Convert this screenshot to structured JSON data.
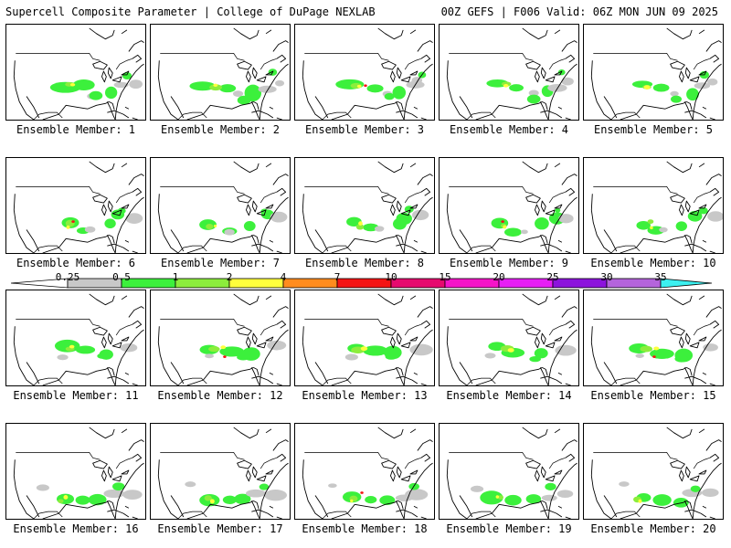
{
  "header": {
    "title_left": "Supercell Composite Parameter | College of DuPage NEXLAB",
    "title_right": "00Z GEFS | F006 Valid: 06Z MON JUN 09 2025"
  },
  "members": [
    {
      "label": "Ensemble Member: 1"
    },
    {
      "label": "Ensemble Member: 2"
    },
    {
      "label": "Ensemble Member: 3"
    },
    {
      "label": "Ensemble Member: 4"
    },
    {
      "label": "Ensemble Member: 5"
    },
    {
      "label": "Ensemble Member: 6"
    },
    {
      "label": "Ensemble Member: 7"
    },
    {
      "label": "Ensemble Member: 8"
    },
    {
      "label": "Ensemble Member: 9"
    },
    {
      "label": "Ensemble Member: 10"
    },
    {
      "label": "Ensemble Member: 11"
    },
    {
      "label": "Ensemble Member: 12"
    },
    {
      "label": "Ensemble Member: 13"
    },
    {
      "label": "Ensemble Member: 14"
    },
    {
      "label": "Ensemble Member: 15"
    },
    {
      "label": "Ensemble Member: 16"
    },
    {
      "label": "Ensemble Member: 17"
    },
    {
      "label": "Ensemble Member: 18"
    },
    {
      "label": "Ensemble Member: 19"
    },
    {
      "label": "Ensemble Member: 20"
    }
  ],
  "colorbar": {
    "ticks": [
      "0.25",
      "0.5",
      "1",
      "2",
      "4",
      "7",
      "10",
      "15",
      "20",
      "25",
      "30",
      "35"
    ],
    "colors": [
      "#c8c8c8",
      "#3cf03c",
      "#8ced3c",
      "#ffff3c",
      "#ff8c1e",
      "#f51414",
      "#e60a6e",
      "#f514c8",
      "#e61ef5",
      "#8c14dc",
      "#b464dc",
      "#3cf0f0"
    ]
  }
}
